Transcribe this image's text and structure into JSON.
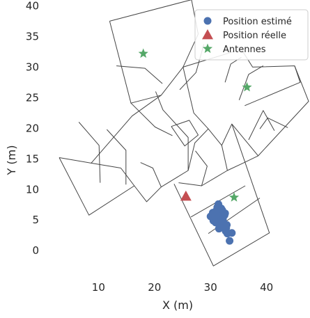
{
  "chart_data": {
    "type": "scatter",
    "title": "",
    "xlabel": "X (m)",
    "ylabel": "Y (m)",
    "xlim": [
      2,
      47.5
    ],
    "ylim": [
      -3.5,
      40.5
    ],
    "xticks": [
      10,
      20,
      30,
      40
    ],
    "yticks": [
      0,
      5,
      10,
      15,
      20,
      25,
      30,
      35,
      40
    ],
    "grid": false,
    "legend_position": "top-right",
    "series": [
      {
        "name": "Position estimé",
        "marker": "circle",
        "color": "#4c72b0",
        "points": [
          [
            30.0,
            5.6
          ],
          [
            30.5,
            4.9
          ],
          [
            30.8,
            6.3
          ],
          [
            31.0,
            5.2
          ],
          [
            31.2,
            7.1
          ],
          [
            31.4,
            4.4
          ],
          [
            31.6,
            6.0
          ],
          [
            31.8,
            5.4
          ],
          [
            32.0,
            3.8
          ],
          [
            32.1,
            6.6
          ],
          [
            32.3,
            4.7
          ],
          [
            32.5,
            5.8
          ],
          [
            32.7,
            3.2
          ],
          [
            32.9,
            4.2
          ],
          [
            31.3,
            5.7
          ],
          [
            30.7,
            5.9
          ],
          [
            31.9,
            6.9
          ],
          [
            32.4,
            4.0
          ],
          [
            33.0,
            2.8
          ],
          [
            33.4,
            1.6
          ],
          [
            31.0,
            6.5
          ],
          [
            32.2,
            5.2
          ],
          [
            30.4,
            6.2
          ],
          [
            31.5,
            3.6
          ],
          [
            32.8,
            3.7
          ],
          [
            33.8,
            2.9
          ],
          [
            31.7,
            4.8
          ],
          [
            30.9,
            4.6
          ],
          [
            32.6,
            6.1
          ],
          [
            31.4,
            7.6
          ]
        ]
      },
      {
        "name": "Position réelle",
        "marker": "triangle",
        "color": "#c44e52",
        "points": [
          [
            25.6,
            8.9
          ]
        ]
      },
      {
        "name": "Antennes",
        "marker": "star",
        "color": "#55a868",
        "points": [
          [
            18.0,
            32.2
          ],
          [
            36.5,
            26.7
          ],
          [
            34.2,
            8.7
          ]
        ]
      }
    ],
    "floor_plan": {
      "color": "#444444",
      "segments": [
        [
          [
            12,
            37.5
          ],
          [
            26.6,
            41
          ],
          [
            27.8,
            35.4
          ],
          [
            25.1,
            30
          ],
          [
            21.2,
            25.4
          ],
          [
            15.8,
            24.1
          ],
          [
            12,
            37.5
          ]
        ],
        [
          [
            25.1,
            30
          ],
          [
            35.5,
            32.9
          ],
          [
            37.5,
            30
          ],
          [
            45,
            30.2
          ],
          [
            47.5,
            24.4
          ],
          [
            38.5,
            15.5
          ],
          [
            35.8,
            14.3
          ],
          [
            33,
            13.1
          ],
          [
            32,
            17.2
          ],
          [
            29.6,
            19.9
          ],
          [
            27,
            22.5
          ],
          [
            25.1,
            30
          ]
        ],
        [
          [
            45,
            30.2
          ],
          [
            46,
            27.5
          ],
          [
            36.1,
            23.7
          ]
        ],
        [
          [
            38.5,
            15.5
          ],
          [
            33.8,
            20.7
          ],
          [
            32,
            17.2
          ]
        ],
        [
          [
            21.2,
            25.4
          ],
          [
            16,
            22
          ],
          [
            8.7,
            14.3
          ]
        ],
        [
          [
            3,
            15.2
          ],
          [
            8.7,
            14.3
          ],
          [
            14,
            13.5
          ]
        ],
        [
          [
            3,
            15.2
          ],
          [
            8.3,
            5.8
          ],
          [
            16.4,
            10.6
          ],
          [
            18.6,
            8
          ],
          [
            21.2,
            10.4
          ]
        ],
        [
          [
            14,
            13.5
          ],
          [
            16.4,
            10.6
          ]
        ],
        [
          [
            20.2,
            26
          ],
          [
            21.5,
            23
          ],
          [
            26,
            18.5
          ],
          [
            26,
            13.1
          ],
          [
            21.2,
            10.4
          ],
          [
            19.7,
            13.5
          ],
          [
            17.5,
            14.4
          ]
        ],
        [
          [
            26,
            13.1
          ],
          [
            27.2,
            17.6
          ],
          [
            29.6,
            19.9
          ]
        ],
        [
          [
            24.3,
            11.1
          ],
          [
            28.4,
            10.6
          ],
          [
            29.4,
            13.8
          ],
          [
            27.3,
            16.3
          ]
        ],
        [
          [
            28.4,
            10.6
          ],
          [
            33,
            13.1
          ]
        ],
        [
          [
            23.5,
            10.9
          ],
          [
            30.5,
            -2.5
          ],
          [
            40.5,
            2.9
          ],
          [
            33.8,
            20.7
          ]
        ],
        [
          [
            26.5,
            5.5
          ],
          [
            36.2,
            10.6
          ]
        ],
        [
          [
            29.6,
            2.8
          ],
          [
            38.8,
            8.6
          ]
        ],
        [
          [
            15.8,
            24.1
          ],
          [
            20.1,
            20.2
          ],
          [
            23.2,
            18.8
          ]
        ],
        [
          [
            6.5,
            21
          ],
          [
            10.1,
            17.2
          ],
          [
            10.3,
            11.1
          ]
        ],
        [
          [
            11.5,
            19.8
          ],
          [
            14.9,
            16.4
          ],
          [
            14.9,
            10.8
          ]
        ],
        [
          [
            13.2,
            30.2
          ],
          [
            18.3,
            29.8
          ],
          [
            21.4,
            27.3
          ]
        ],
        [
          [
            28.8,
            33.7
          ],
          [
            27.4,
            29.1
          ],
          [
            24.5,
            26.3
          ]
        ],
        [
          [
            32.6,
            27.5
          ],
          [
            33.6,
            30.5
          ],
          [
            35.5,
            31.6
          ]
        ],
        [
          [
            39.4,
            30.2
          ],
          [
            36.8,
            28.8
          ],
          [
            35.1,
            24.6
          ]
        ],
        [
          [
            38.8,
            19.9
          ],
          [
            40.2,
            21.7
          ],
          [
            43.8,
            20.1
          ]
        ],
        [
          [
            36.8,
            18.1
          ],
          [
            39.4,
            22.9
          ],
          [
            41.4,
            19.6
          ]
        ],
        [
          [
            23,
            20.3
          ],
          [
            26.2,
            21.3
          ],
          [
            27.8,
            18.9
          ],
          [
            25.4,
            17.1
          ],
          [
            23,
            20.3
          ]
        ]
      ]
    }
  }
}
